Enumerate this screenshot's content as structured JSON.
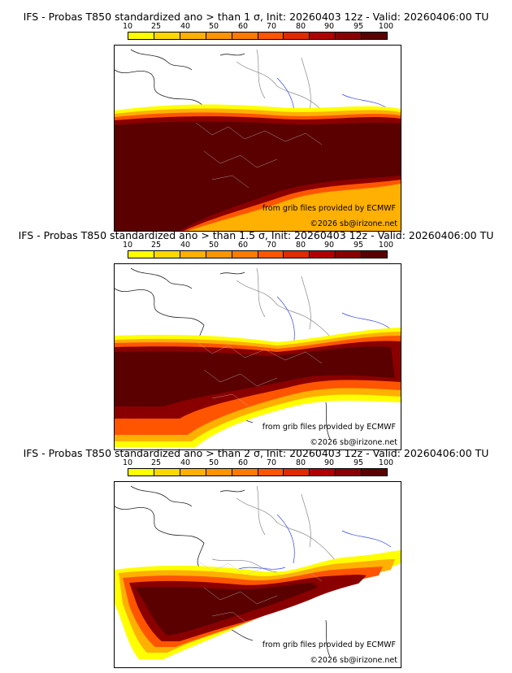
{
  "legend": {
    "labels": [
      "10",
      "25",
      "40",
      "50",
      "60",
      "70",
      "80",
      "90",
      "95",
      "100"
    ],
    "colors": [
      "#ffff00",
      "#ffd700",
      "#ffb000",
      "#ff9400",
      "#ff7a00",
      "#ff5500",
      "#e02a00",
      "#b00000",
      "#8a0000",
      "#5a0000"
    ]
  },
  "panels": [
    {
      "title": "IFS - Probas T850  standardized ano > than 1 σ, Init: 20260403 12z - Valid: 20260406:00 TU",
      "source_note": "from grib files provided by ECMWF",
      "copyright": "©2026 sb@irizone.net"
    },
    {
      "title": "IFS - Probas T850  standardized ano > than 1.5 σ, Init: 20260403 12z - Valid: 20260406:00 TU",
      "source_note": "from grib files provided by ECMWF",
      "copyright": "©2026 sb@irizone.net"
    },
    {
      "title": "IFS - Probas T850  standardized ano > than 2 σ, Init: 20260403 12z - Valid: 20260406:00 TU",
      "source_note": "from grib files provided by ECMWF",
      "copyright": "©2026 sb@irizone.net"
    }
  ]
}
